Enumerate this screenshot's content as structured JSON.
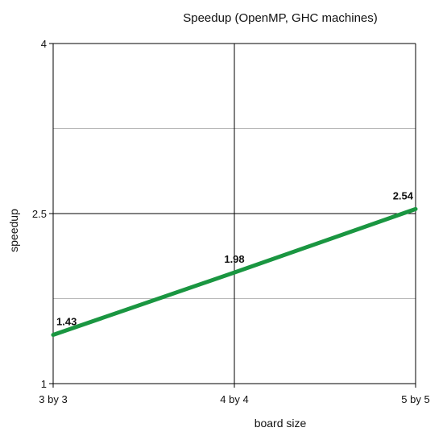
{
  "chart_data": {
    "type": "line",
    "title": "Speedup (OpenMP, GHC machines)",
    "xlabel": "board size",
    "ylabel": "speedup",
    "categories": [
      "3 by 3",
      "4 by 4",
      "5 by 5"
    ],
    "series": [
      {
        "color": "#1a9641",
        "values": [
          1.43,
          1.98,
          2.54
        ]
      }
    ],
    "data_labels": [
      "1.43",
      "1.98",
      "2.54"
    ],
    "ylim": [
      1,
      4
    ],
    "y_tick_labels": [
      "1",
      "2.5",
      "4"
    ],
    "grid": true
  }
}
